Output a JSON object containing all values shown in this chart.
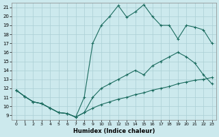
{
  "title": "",
  "xlabel": "Humidex (Indice chaleur)",
  "bg_color": "#cce9ed",
  "grid_color": "#aacfd4",
  "line_color": "#1a6b5e",
  "xlim": [
    -0.5,
    23.5
  ],
  "ylim": [
    8.5,
    21.5
  ],
  "xticks": [
    0,
    1,
    2,
    3,
    4,
    5,
    6,
    7,
    8,
    9,
    10,
    11,
    12,
    13,
    14,
    15,
    16,
    17,
    18,
    19,
    20,
    21,
    22,
    23
  ],
  "yticks": [
    9,
    10,
    11,
    12,
    13,
    14,
    15,
    16,
    17,
    18,
    19,
    20,
    21
  ],
  "series": [
    {
      "x": [
        0,
        1,
        2,
        3,
        4,
        5,
        6,
        7,
        8,
        9,
        10,
        11,
        12,
        13,
        14,
        15,
        16,
        17,
        18,
        19,
        20,
        21,
        22,
        23
      ],
      "y": [
        11.8,
        11.1,
        10.5,
        10.3,
        9.8,
        9.3,
        9.2,
        8.8,
        9.3,
        9.8,
        10.2,
        10.5,
        10.8,
        11.0,
        11.3,
        11.5,
        11.8,
        12.0,
        12.2,
        12.5,
        12.7,
        12.9,
        13.0,
        13.2
      ]
    },
    {
      "x": [
        0,
        1,
        2,
        3,
        4,
        5,
        6,
        7,
        8,
        9,
        10,
        11,
        12,
        13,
        14,
        15,
        16,
        17,
        18,
        19,
        20,
        21,
        22,
        23
      ],
      "y": [
        11.8,
        11.1,
        10.5,
        10.3,
        9.8,
        9.3,
        9.2,
        8.8,
        11.0,
        17.0,
        19.0,
        20.0,
        21.2,
        19.9,
        20.5,
        21.3,
        20.0,
        19.0,
        19.0,
        17.5,
        19.0,
        18.8,
        18.5,
        17.0
      ]
    },
    {
      "x": [
        0,
        1,
        2,
        3,
        4,
        5,
        6,
        7,
        8,
        9,
        10,
        11,
        12,
        13,
        14,
        15,
        16,
        17,
        18,
        19,
        20,
        21,
        22,
        23
      ],
      "y": [
        11.8,
        11.1,
        10.5,
        10.3,
        9.8,
        9.3,
        9.2,
        8.8,
        9.3,
        11.0,
        12.0,
        12.5,
        13.0,
        13.5,
        14.0,
        13.5,
        14.5,
        15.0,
        15.5,
        16.0,
        15.5,
        14.8,
        13.5,
        12.5
      ]
    }
  ]
}
